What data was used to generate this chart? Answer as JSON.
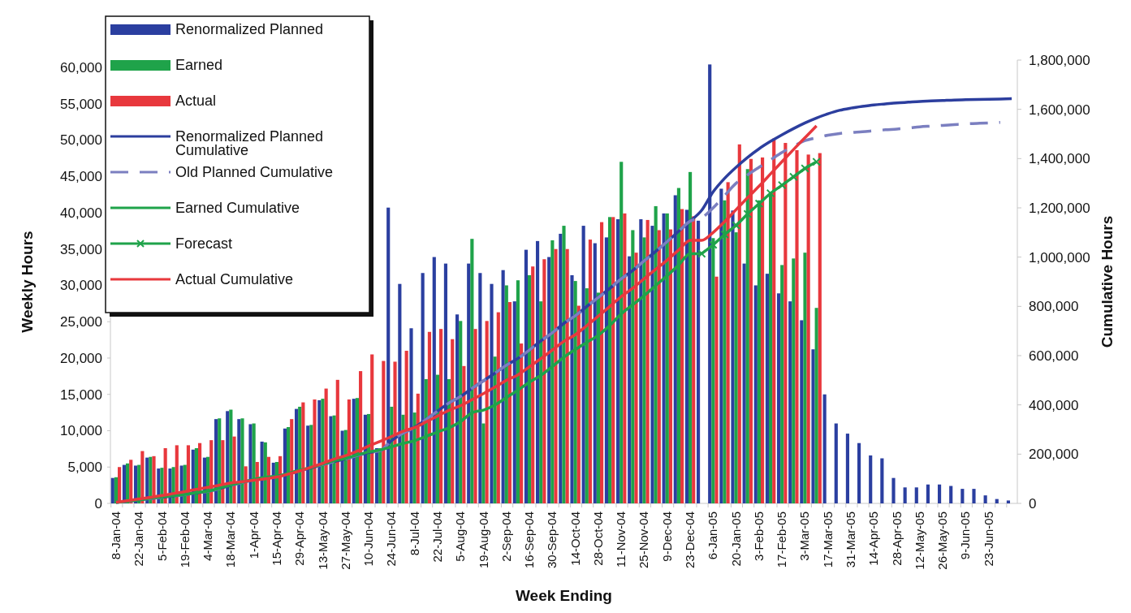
{
  "chart_data": {
    "type": "bar",
    "xlabel": "Week Ending",
    "ylabel": "Weekly Hours",
    "y2label": "Cumulative Hours",
    "legend": "top left",
    "categories": [
      "8-Jan-04",
      null,
      "22-Jan-04",
      null,
      "5-Feb-04",
      null,
      "19-Feb-04",
      null,
      "4-Mar-04",
      null,
      "18-Mar-04",
      null,
      "1-Apr-04",
      null,
      "15-Apr-04",
      null,
      "29-Apr-04",
      null,
      "13-May-04",
      null,
      "27-May-04",
      null,
      "10-Jun-04",
      null,
      "24-Jun-04",
      null,
      "8-Jul-04",
      null,
      "22-Jul-04",
      null,
      "5-Aug-04",
      null,
      "19-Aug-04",
      null,
      "2-Sep-04",
      null,
      "16-Sep-04",
      null,
      "30-Sep-04",
      null,
      "14-Oct-04",
      null,
      "28-Oct-04",
      null,
      "11-Nov-04",
      null,
      "25-Nov-04",
      null,
      "9-Dec-04",
      null,
      "23-Dec-04",
      null,
      "6-Jan-05",
      null,
      "20-Jan-05",
      null,
      "3-Feb-05",
      null,
      "17-Feb-05",
      null,
      "3-Mar-05",
      null,
      "17-Mar-05",
      null,
      "31-Mar-05",
      null,
      "14-Apr-05",
      null,
      "28-Apr-05",
      null,
      "12-May-05",
      null,
      "26-May-05",
      null,
      "9-Jun-05",
      null,
      "23-Jun-05",
      null,
      null
    ],
    "ylim": [
      0,
      61000
    ],
    "yticks": [
      {
        "value": 0,
        "label": "0"
      },
      {
        "value": 5000,
        "label": "5,000"
      },
      {
        "value": 10000,
        "label": "10,000"
      },
      {
        "value": 15000,
        "label": "15,000"
      },
      {
        "value": 20000,
        "label": "20,000"
      },
      {
        "value": 25000,
        "label": "25,000"
      },
      {
        "value": 30000,
        "label": "30,000"
      },
      {
        "value": 35000,
        "label": "35,000"
      },
      {
        "value": 40000,
        "label": "40,000"
      },
      {
        "value": 45000,
        "label": "45,000"
      },
      {
        "value": 50000,
        "label": "50,000"
      },
      {
        "value": 55000,
        "label": "55,000"
      },
      {
        "value": 60000,
        "label": "60,000"
      }
    ],
    "y2lim": [
      0,
      1800000
    ],
    "y2ticks": [
      {
        "value": 0,
        "label": "0"
      },
      {
        "value": 200000,
        "label": "200,000"
      },
      {
        "value": 400000,
        "label": "400,000"
      },
      {
        "value": 600000,
        "label": "600,000"
      },
      {
        "value": 800000,
        "label": "800,000"
      },
      {
        "value": 1000000,
        "label": "1,000,000"
      },
      {
        "value": 1200000,
        "label": "1,200,000"
      },
      {
        "value": 1400000,
        "label": "1,400,000"
      },
      {
        "value": 1600000,
        "label": "1,600,000"
      },
      {
        "value": 1800000,
        "label": "1,800,000"
      }
    ],
    "series": [
      {
        "name": "Renormalized Planned",
        "color": "#2b3fa0",
        "values": [
          3500,
          5300,
          5200,
          6300,
          4800,
          4800,
          5200,
          7400,
          6300,
          11600,
          12700,
          11600,
          10900,
          8500,
          5600,
          10300,
          13000,
          10700,
          14200,
          12000,
          10000,
          14400,
          12200,
          7600,
          40700,
          30200,
          24100,
          31700,
          33900,
          33000,
          26000,
          33000,
          31700,
          30200,
          32100,
          27800,
          34900,
          36100,
          33900,
          37100,
          31400,
          38200,
          35800,
          36600,
          39100,
          34000,
          39100,
          38200,
          39900,
          42400,
          40400,
          38900,
          60400,
          43300,
          40300,
          33000,
          30000,
          31600,
          28900,
          27800,
          25200,
          21200,
          15000,
          11000,
          9600,
          8300,
          6600,
          6200,
          3500,
          2200,
          2200,
          2600,
          2600,
          2400,
          2000,
          2000,
          1100,
          600,
          400
        ]
      },
      {
        "name": "Earned",
        "color": "#1fa34a",
        "values": [
          3600,
          5500,
          5300,
          6400,
          4900,
          5000,
          5300,
          7600,
          6400,
          11700,
          12900,
          11700,
          11000,
          8400,
          5700,
          10500,
          13300,
          10800,
          14400,
          12100,
          10100,
          14500,
          12300,
          7600,
          13300,
          12200,
          12500,
          17100,
          17700,
          17100,
          25100,
          36400,
          11000,
          20200,
          30000,
          30700,
          31400,
          27800,
          36200,
          38200,
          30600,
          29600,
          29000,
          39400,
          47000,
          37600,
          36600,
          40900,
          39900,
          43400,
          45600,
          null,
          36500,
          41700,
          37300,
          46000,
          41700,
          42700,
          32800,
          33700,
          34500,
          26900,
          null,
          null,
          null,
          null,
          null,
          null,
          null,
          null,
          null,
          null,
          null,
          null,
          null,
          null,
          null,
          null,
          null
        ]
      },
      {
        "name": "Actual",
        "color": "#e8383d",
        "values": [
          5000,
          6000,
          7200,
          6500,
          7600,
          8000,
          8000,
          8300,
          8700,
          8700,
          9200,
          5100,
          5700,
          6400,
          6500,
          11600,
          13900,
          14300,
          15800,
          17000,
          14300,
          18200,
          20500,
          19600,
          19500,
          21000,
          15100,
          23600,
          24000,
          22600,
          18900,
          24000,
          25100,
          26300,
          27700,
          22000,
          32600,
          33600,
          35000,
          35000,
          27200,
          36300,
          38700,
          39400,
          39900,
          34500,
          39000,
          37600,
          37700,
          40500,
          39500,
          null,
          31200,
          44200,
          49400,
          47400,
          47600,
          50200,
          49600,
          48600,
          48000,
          48200,
          null,
          null,
          null,
          null,
          null,
          null,
          null,
          null,
          null,
          null,
          null,
          null,
          null,
          null,
          null,
          null,
          null
        ]
      },
      {
        "name": "Renormalized Planned Cumulative",
        "type": "line",
        "axis": "y2",
        "color": "#2c3e9e",
        "values": [
          4000,
          9000,
          14000,
          20000,
          25000,
          30000,
          35000,
          43000,
          49000,
          60000,
          73000,
          85000,
          96000,
          104000,
          110000,
          120000,
          133000,
          144000,
          158000,
          170000,
          180000,
          194000,
          207000,
          214000,
          255000,
          285000,
          309000,
          341000,
          375000,
          408000,
          434000,
          467000,
          498000,
          529000,
          561000,
          589000,
          623000,
          660000,
          693000,
          731000,
          762000,
          800000,
          836000,
          873000,
          912000,
          946000,
          985000,
          1023000,
          1063000,
          1105000,
          1146000,
          1190000,
          1265000,
          1320000,
          1365000,
          1405000,
          1440000,
          1470000,
          1497000,
          1522000,
          1545000,
          1565000,
          1582000,
          1596000,
          1605000,
          1612000,
          1618000,
          1622000,
          1626000,
          1629000,
          1632000,
          1634000,
          1636000,
          1638000,
          1639000,
          1640000,
          1641000,
          1642000,
          1643000
        ]
      },
      {
        "name": "Old Planned Cumulative",
        "type": "line",
        "axis": "y2",
        "line_style": "dashed",
        "color": "#7b7fc0",
        "values": [
          4000,
          9000,
          14000,
          20000,
          25000,
          30000,
          35000,
          43000,
          49000,
          60000,
          73000,
          85000,
          96000,
          104000,
          110000,
          120000,
          133000,
          144000,
          158000,
          170000,
          180000,
          194000,
          207000,
          214000,
          255000,
          285000,
          309000,
          341000,
          375000,
          408000,
          434000,
          467000,
          498000,
          529000,
          561000,
          589000,
          623000,
          660000,
          693000,
          731000,
          762000,
          800000,
          836000,
          873000,
          912000,
          946000,
          985000,
          1023000,
          1063000,
          1105000,
          1146000,
          1160000,
          1200000,
          1250000,
          1300000,
          1334000,
          1365000,
          1395000,
          1425000,
          1450000,
          1473000,
          1485000,
          1495000,
          1502000,
          1506000,
          1509000,
          1513000,
          1517000,
          1520000,
          1524000,
          1529000,
          1532000,
          1535000,
          1538000,
          1541000,
          1543000,
          1545000,
          1547000,
          null
        ]
      },
      {
        "name": "Earned Cumulative",
        "type": "line",
        "axis": "y2",
        "color": "#1fa34a",
        "values": [
          4000,
          9000,
          14000,
          21000,
          26000,
          31000,
          36000,
          44000,
          50000,
          62000,
          75000,
          86000,
          97000,
          106000,
          111000,
          122000,
          135000,
          146000,
          160000,
          173000,
          183000,
          197000,
          209000,
          217000,
          230000,
          243000,
          255000,
          272000,
          290000,
          307000,
          332000,
          368000,
          379000,
          400000,
          430000,
          460000,
          492000,
          520000,
          556000,
          594000,
          625000,
          654000,
          683000,
          723000,
          770000,
          807000,
          844000,
          885000,
          925000,
          968000,
          1014000,
          1014000,
          null,
          null,
          null,
          null,
          null,
          null,
          null,
          null,
          null,
          null,
          null,
          null,
          null,
          null,
          null,
          null,
          null,
          null,
          null,
          null,
          null,
          null,
          null,
          null,
          null,
          null,
          null
        ]
      },
      {
        "name": "Forecast",
        "type": "line",
        "axis": "y2",
        "marker": "cross",
        "color": "#1fa34a",
        "values": [
          null,
          null,
          null,
          null,
          null,
          null,
          null,
          null,
          null,
          null,
          null,
          null,
          null,
          null,
          null,
          null,
          null,
          null,
          null,
          null,
          null,
          null,
          null,
          null,
          null,
          null,
          null,
          null,
          null,
          null,
          null,
          null,
          null,
          null,
          null,
          null,
          null,
          null,
          null,
          null,
          null,
          null,
          null,
          null,
          null,
          null,
          null,
          null,
          null,
          null,
          null,
          1014000,
          1050000,
          1092000,
          1129000,
          1175000,
          1217000,
          1259000,
          1292000,
          1326000,
          1360000,
          1387000,
          null,
          null,
          null,
          null,
          null,
          null,
          null,
          null,
          null,
          null,
          null,
          null,
          null,
          null,
          null,
          null,
          null
        ]
      },
      {
        "name": "Actual Cumulative",
        "type": "line",
        "axis": "y2",
        "color": "#e8383d",
        "values": [
          5000,
          11000,
          18000,
          25000,
          32000,
          40000,
          48000,
          57000,
          65000,
          74000,
          83000,
          88000,
          94000,
          100000,
          107000,
          119000,
          132000,
          147000,
          163000,
          180000,
          194000,
          212000,
          233000,
          252000,
          272000,
          293000,
          308000,
          331000,
          355000,
          378000,
          397000,
          421000,
          446000,
          472000,
          500000,
          522000,
          555000,
          588000,
          623000,
          658000,
          685000,
          722000,
          760000,
          800000,
          840000,
          874000,
          913000,
          951000,
          988000,
          1029000,
          1068000,
          1068000,
          1100000,
          1144000,
          1193000,
          1241000,
          1288000,
          1338000,
          1388000,
          1437000,
          1485000,
          1533000,
          null,
          null,
          null,
          null,
          null,
          null,
          null,
          null,
          null,
          null,
          null,
          null,
          null,
          null,
          null,
          null,
          null
        ]
      }
    ]
  }
}
